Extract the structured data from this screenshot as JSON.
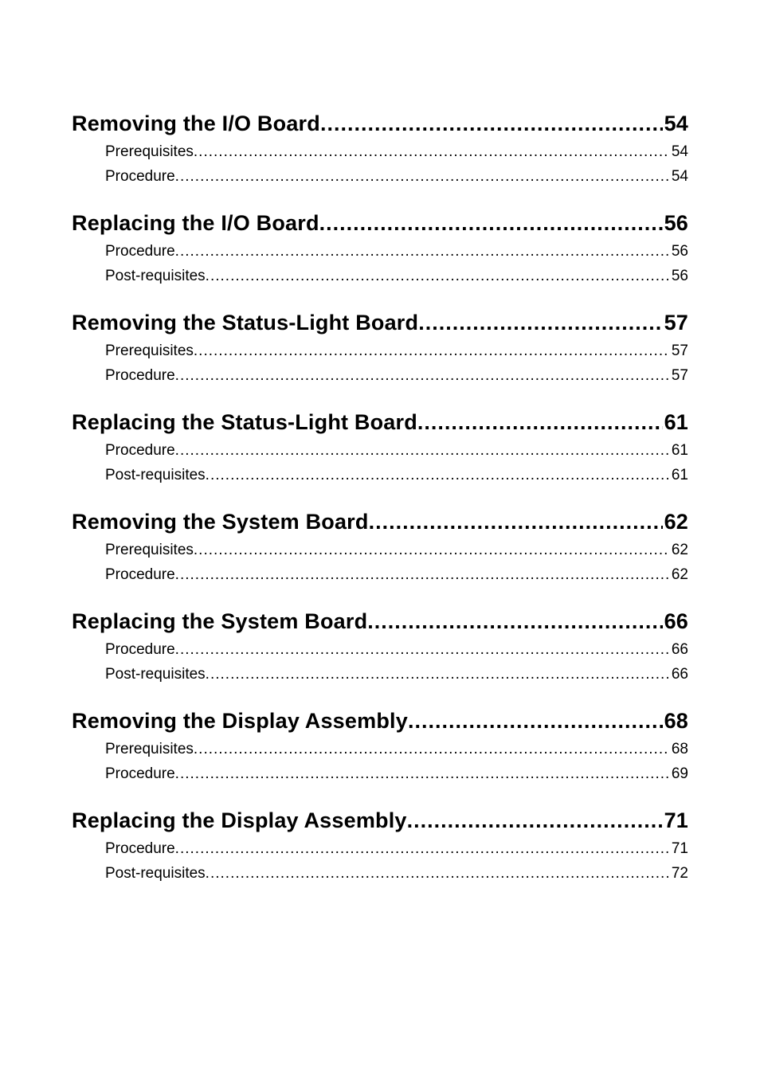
{
  "toc": {
    "sections": [
      {
        "title": "Removing the I/O Board",
        "page": "54",
        "children": [
          {
            "title": "Prerequisites",
            "page": "54"
          },
          {
            "title": "Procedure",
            "page": "54"
          }
        ]
      },
      {
        "title": "Replacing the I/O Board",
        "page": "56",
        "children": [
          {
            "title": "Procedure",
            "page": "56"
          },
          {
            "title": "Post-requisites",
            "page": "56"
          }
        ]
      },
      {
        "title": "Removing the Status-Light Board",
        "page": "57",
        "children": [
          {
            "title": "Prerequisites",
            "page": "57"
          },
          {
            "title": "Procedure",
            "page": "57"
          }
        ]
      },
      {
        "title": "Replacing the Status-Light Board",
        "page": "61",
        "children": [
          {
            "title": "Procedure",
            "page": "61"
          },
          {
            "title": "Post-requisites",
            "page": "61"
          }
        ]
      },
      {
        "title": "Removing the System Board",
        "page": "62",
        "children": [
          {
            "title": "Prerequisites",
            "page": "62"
          },
          {
            "title": "Procedure",
            "page": "62"
          }
        ]
      },
      {
        "title": "Replacing the System Board",
        "page": "66",
        "children": [
          {
            "title": "Procedure",
            "page": "66"
          },
          {
            "title": "Post-requisites",
            "page": "66"
          }
        ]
      },
      {
        "title": "Removing the Display Assembly",
        "page": "68",
        "children": [
          {
            "title": "Prerequisites",
            "page": "68"
          },
          {
            "title": "Procedure",
            "page": "69"
          }
        ]
      },
      {
        "title": "Replacing the Display Assembly",
        "page": "71",
        "children": [
          {
            "title": "Procedure",
            "page": "71"
          },
          {
            "title": "Post-requisites",
            "page": "72"
          }
        ]
      }
    ]
  }
}
